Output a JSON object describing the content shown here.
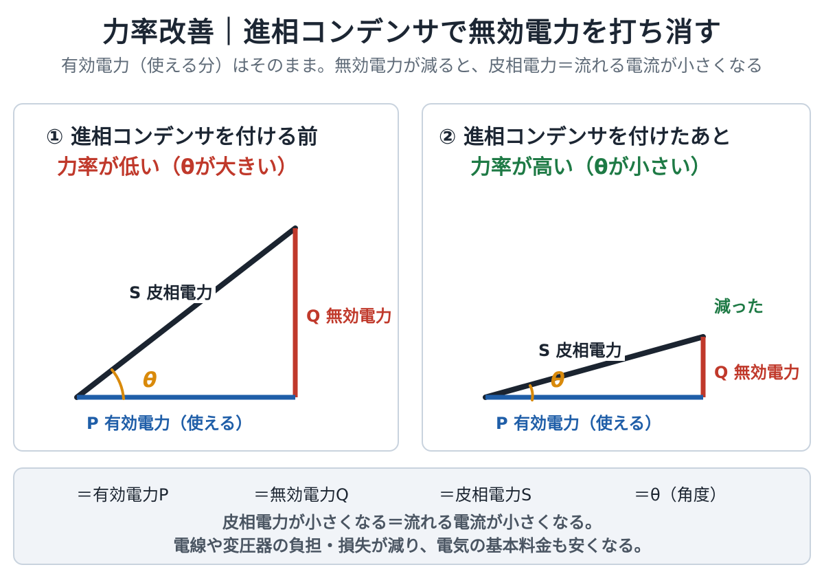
{
  "title": "力率改善｜進相コンデンサで無効電力を打ち消す",
  "subtitle": "有効電力（使える分）はそのまま。無効電力が減ると、皮相電力＝流れる電流が小さくなる",
  "before": {
    "heading": "① 進相コンデンサを付ける前",
    "status": "力率が低い（θが大きい）",
    "s_label": "S 皮相電力",
    "q_label": "Q 無効電力",
    "p_label": "P 有効電力（使える）",
    "theta": "θ"
  },
  "after": {
    "heading": "② 進相コンデンサを付けたあと",
    "status": "力率が高い（θが小さい）",
    "s_label": "S 皮相電力",
    "q_label": "Q 無効電力",
    "p_label": "P 有効電力（使える）",
    "theta": "θ",
    "decreased": "減った"
  },
  "legend": {
    "p": "＝有効電力P",
    "q": "＝無効電力Q",
    "s": "＝皮相電力S",
    "theta": "＝θ（角度）",
    "note_line1": "皮相電力が小さくなる＝流れる電流が小さくなる。",
    "note_line2": "電線や変圧器の負担・損失が減り、電気の基本料金も安くなる。"
  },
  "colors": {
    "p": "#1f5ea8",
    "q": "#c0392b",
    "s": "#1b2430",
    "theta": "#d98a0b",
    "decreased": "#1e7a45"
  }
}
